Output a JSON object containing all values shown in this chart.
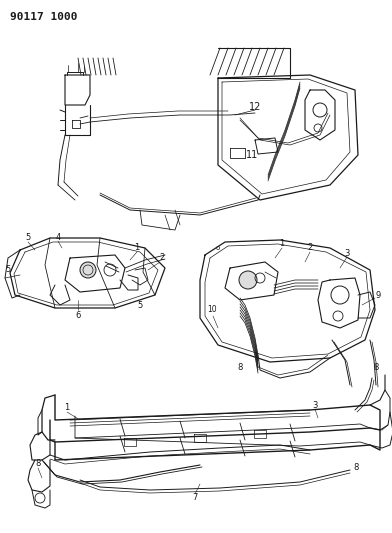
{
  "title": "90117 1000",
  "bg_color": "#ffffff",
  "line_color": "#1a1a1a",
  "fig_width": 3.92,
  "fig_height": 5.33,
  "dpi": 100
}
